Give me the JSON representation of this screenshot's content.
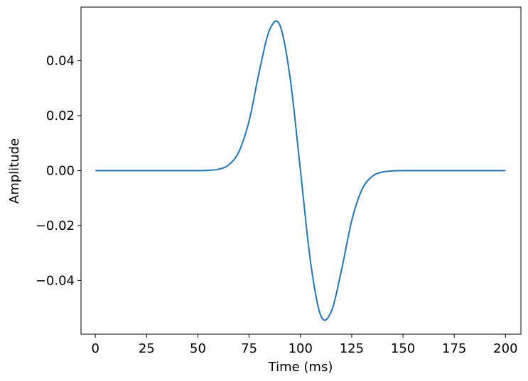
{
  "chart_data": {
    "type": "line",
    "title": "",
    "xlabel": "Time (ms)",
    "ylabel": "Amplitude",
    "xlim": [
      -7.0,
      207.5
    ],
    "ylim": [
      -0.0595,
      0.0595
    ],
    "xticks": [
      0,
      25,
      50,
      75,
      100,
      125,
      150,
      175,
      200
    ],
    "xtick_labels": [
      "0",
      "25",
      "50",
      "75",
      "100",
      "125",
      "150",
      "175",
      "200"
    ],
    "yticks": [
      -0.04,
      -0.02,
      0.0,
      0.02,
      0.04
    ],
    "ytick_labels": [
      "−0.04",
      "−0.02",
      "0.00",
      "0.02",
      "0.04"
    ],
    "grid": false,
    "legend": "none",
    "series_color": "#1f77b4",
    "series": [
      {
        "x": [
          0,
          10,
          20,
          30,
          40,
          50,
          55,
          60,
          65,
          70,
          75,
          80,
          85,
          90,
          95,
          100,
          105,
          110,
          115,
          120,
          125,
          130,
          135,
          140,
          145,
          150,
          160,
          170,
          180,
          190,
          200
        ],
        "values": [
          0.0,
          0.0,
          0.0,
          0.0,
          0.0,
          0.0,
          0.0001,
          0.0005,
          0.0021,
          0.0069,
          0.0182,
          0.0363,
          0.0513,
          0.0529,
          0.0336,
          0.0,
          -0.0336,
          -0.0529,
          -0.0513,
          -0.0363,
          -0.0182,
          -0.0069,
          -0.0021,
          -0.0005,
          -0.0001,
          0.0,
          0.0,
          0.0,
          0.0,
          0.0,
          0.0
        ]
      }
    ]
  }
}
